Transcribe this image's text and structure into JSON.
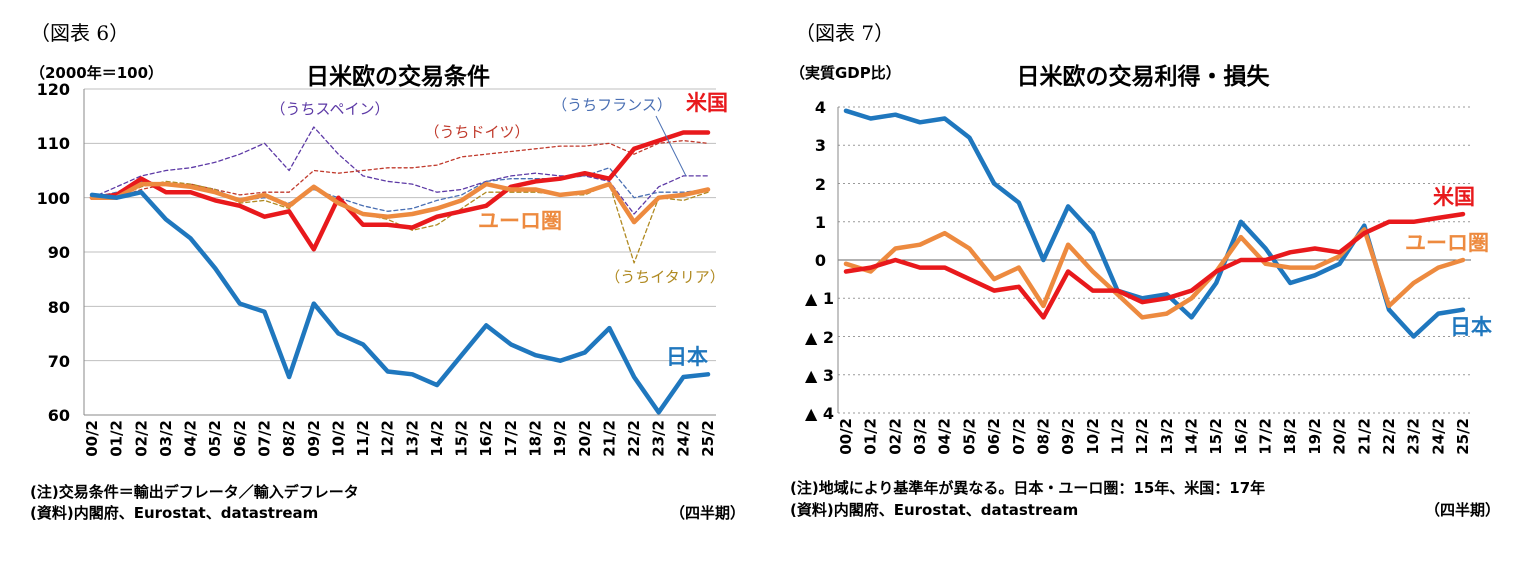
{
  "chart_data": [
    {
      "type": "line",
      "fig_label": "（図表 6）",
      "title": "日米欧の交易条件",
      "unit_label": "（2000年＝100）",
      "ylim": [
        60,
        120
      ],
      "yticks": [
        "120",
        "110",
        "100",
        "90",
        "80",
        "70",
        "60"
      ],
      "categories": [
        "00/2",
        "01/2",
        "02/2",
        "03/2",
        "04/2",
        "05/2",
        "06/2",
        "07/2",
        "08/2",
        "09/2",
        "10/2",
        "11/2",
        "12/2",
        "13/2",
        "14/2",
        "15/2",
        "16/2",
        "17/2",
        "18/2",
        "19/2",
        "20/2",
        "21/2",
        "22/2",
        "23/2",
        "24/2",
        "25/2"
      ],
      "series": [
        {
          "name": "米国",
          "color": "#e8191c",
          "width": 4.5,
          "dash": "",
          "values": [
            100,
            100.5,
            103.5,
            101,
            101,
            99.5,
            98.5,
            96.5,
            97.5,
            90.5,
            100,
            95,
            95,
            94.5,
            96.5,
            97.5,
            98.5,
            102,
            103,
            103.5,
            104.5,
            103.5,
            109,
            110.5,
            112,
            112
          ]
        },
        {
          "name": "ユーロ圏",
          "color": "#ed8a3f",
          "width": 4.5,
          "dash": "",
          "values": [
            100,
            100,
            102.5,
            102.5,
            102,
            101,
            99.5,
            100.5,
            98.5,
            102,
            99,
            97,
            96.5,
            97,
            98,
            99.5,
            102.5,
            101.5,
            101.5,
            100.5,
            101,
            102.5,
            95.5,
            100,
            100.5,
            101.5
          ]
        },
        {
          "name": "日本",
          "color": "#1f77be",
          "width": 4.5,
          "dash": "",
          "values": [
            100.5,
            100,
            101,
            96,
            92.5,
            87,
            80.5,
            79,
            67,
            80.5,
            75,
            73,
            68,
            67.5,
            65.5,
            71,
            76.5,
            73,
            71,
            70,
            71.5,
            76,
            67,
            60.5,
            67,
            67.5
          ]
        },
        {
          "name": "（うちスペイン）",
          "color": "#5d3aa6",
          "width": 1.3,
          "dash": "4 3",
          "values": [
            100,
            102,
            104,
            105,
            105.5,
            106.5,
            108,
            110,
            105,
            113,
            108,
            104,
            103,
            102.5,
            101,
            101.5,
            103,
            104,
            104.5,
            104,
            104,
            103,
            97,
            102,
            104,
            104
          ]
        },
        {
          "name": "（うちドイツ）",
          "color": "#c0392b",
          "width": 1.3,
          "dash": "3 3",
          "values": [
            100,
            100,
            101.5,
            102.5,
            102.5,
            101.5,
            100.5,
            101,
            101,
            105,
            104.5,
            105,
            105.5,
            105.5,
            106,
            107.5,
            108,
            108.5,
            109,
            109.5,
            109.5,
            110,
            108,
            110,
            110.5,
            110
          ]
        },
        {
          "name": "（うちフランス）",
          "color": "#4a6fb3",
          "width": 1.3,
          "dash": "4 3",
          "values": [
            100,
            101,
            103,
            102.5,
            102,
            101.5,
            99.5,
            100,
            99,
            101.5,
            100,
            98.5,
            97.5,
            98,
            99.5,
            100.5,
            103,
            103.5,
            103.5,
            103.5,
            104,
            105.5,
            100,
            101,
            101,
            101.5
          ]
        },
        {
          "name": "（うちイタリア）",
          "color": "#b08a22",
          "width": 1.3,
          "dash": "4 3",
          "values": [
            100,
            100,
            102,
            103,
            102.5,
            101.5,
            99,
            99.5,
            98,
            102,
            99.5,
            97,
            96,
            94,
            95,
            98,
            101,
            101,
            101,
            100.5,
            100.5,
            102.5,
            88,
            100,
            99.5,
            101
          ]
        }
      ],
      "notes": [
        "(注)交易条件＝輸出デフレータ／輸入デフレータ",
        "(資料)内閣府、Eurostat、datastream"
      ],
      "period_label": "（四半期）"
    },
    {
      "type": "line",
      "fig_label": "（図表 7）",
      "title": "日米欧の交易利得・損失",
      "unit_label": "（実質GDP比）",
      "ylim": [
        -4,
        4
      ],
      "yticks": [
        "4",
        "3",
        "2",
        "1",
        "0",
        "▲ 1",
        "▲ 2",
        "▲ 3",
        "▲ 4"
      ],
      "categories": [
        "00/2",
        "01/2",
        "02/2",
        "03/2",
        "04/2",
        "05/2",
        "06/2",
        "07/2",
        "08/2",
        "09/2",
        "10/2",
        "11/2",
        "12/2",
        "13/2",
        "14/2",
        "15/2",
        "16/2",
        "17/2",
        "18/2",
        "19/2",
        "20/2",
        "21/2",
        "22/2",
        "23/2",
        "24/2",
        "25/2"
      ],
      "series": [
        {
          "name": "日本",
          "color": "#1f77be",
          "width": 4.5,
          "dash": "",
          "values": [
            3.9,
            3.7,
            3.8,
            3.6,
            3.7,
            3.2,
            2.0,
            1.5,
            0.0,
            1.4,
            0.7,
            -0.8,
            -1.0,
            -0.9,
            -1.5,
            -0.6,
            1.0,
            0.3,
            -0.6,
            -0.4,
            -0.1,
            0.9,
            -1.3,
            -2.0,
            -1.4,
            -1.3
          ]
        },
        {
          "name": "ユーロ圏",
          "color": "#ed8a3f",
          "width": 4.5,
          "dash": "",
          "values": [
            -0.1,
            -0.3,
            0.3,
            0.4,
            0.7,
            0.3,
            -0.5,
            -0.2,
            -1.2,
            0.4,
            -0.3,
            -0.9,
            -1.5,
            -1.4,
            -1.0,
            -0.3,
            0.6,
            -0.1,
            -0.2,
            -0.2,
            0.1,
            0.8,
            -1.2,
            -0.6,
            -0.2,
            0.0
          ]
        },
        {
          "name": "米国",
          "color": "#e8191c",
          "width": 4.5,
          "dash": "",
          "values": [
            -0.3,
            -0.2,
            0.0,
            -0.2,
            -0.2,
            -0.5,
            -0.8,
            -0.7,
            -1.5,
            -0.3,
            -0.8,
            -0.8,
            -1.1,
            -1.0,
            -0.8,
            -0.3,
            0.0,
            0.0,
            0.2,
            0.3,
            0.2,
            0.7,
            1.0,
            1.0,
            1.1,
            1.2
          ]
        }
      ],
      "notes": [
        "(注)地域により基準年が異なる。日本・ユーロ圏：15年、米国：17年",
        "(資料)内閣府、Eurostat、datastream"
      ],
      "period_label": "（四半期）"
    }
  ]
}
